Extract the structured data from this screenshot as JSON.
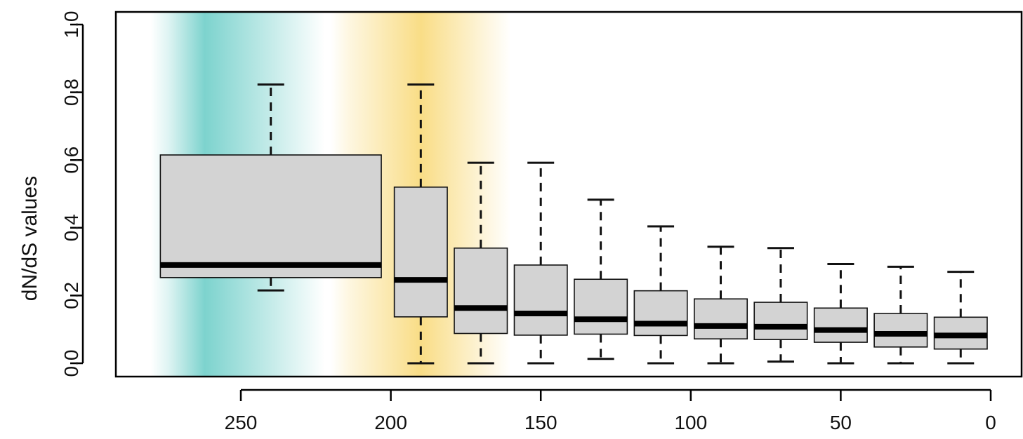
{
  "chart_data": {
    "type": "box",
    "title": "",
    "xlabel": "",
    "ylabel": "dN/dS values",
    "xlim": [
      290,
      -8
    ],
    "ylim": [
      0.0,
      1.0
    ],
    "x_ticks": [
      250,
      200,
      150,
      100,
      50,
      0
    ],
    "x_tick_labels": [
      "250",
      "200",
      "150",
      "100",
      "50",
      "0"
    ],
    "y_ticks": [
      0.0,
      0.2,
      0.4,
      0.6,
      0.8,
      1.0
    ],
    "y_tick_labels": [
      "0.0",
      "0.2",
      "0.4",
      "0.6",
      "0.8",
      "1.0"
    ],
    "grid": false,
    "background_bands": [
      {
        "from": 280,
        "to": 222,
        "peak": 262,
        "color": "#7dd3ce"
      },
      {
        "from": 220,
        "to": 160,
        "peak": 190,
        "color": "#f9dd86"
      }
    ],
    "box_color": "#d3d3d3",
    "boxes": [
      {
        "x_left": 278,
        "x_right": 202,
        "x_center": 240,
        "whisker_low": 0.215,
        "q1": 0.253,
        "median": 0.29,
        "q3": 0.615,
        "whisker_high": 0.823
      },
      {
        "x_left": 200,
        "x_right": 180,
        "x_center": 190,
        "whisker_low": 0.0,
        "q1": 0.137,
        "median": 0.246,
        "q3": 0.52,
        "whisker_high": 0.823
      },
      {
        "x_left": 180,
        "x_right": 160,
        "x_center": 170,
        "whisker_low": 0.0,
        "q1": 0.088,
        "median": 0.163,
        "q3": 0.34,
        "whisker_high": 0.592
      },
      {
        "x_left": 160,
        "x_right": 140,
        "x_center": 150,
        "whisker_low": 0.0,
        "q1": 0.083,
        "median": 0.147,
        "q3": 0.29,
        "whisker_high": 0.592
      },
      {
        "x_left": 140,
        "x_right": 120,
        "x_center": 130,
        "whisker_low": 0.013,
        "q1": 0.086,
        "median": 0.13,
        "q3": 0.248,
        "whisker_high": 0.483
      },
      {
        "x_left": 120,
        "x_right": 100,
        "x_center": 110,
        "whisker_low": 0.0,
        "q1": 0.082,
        "median": 0.117,
        "q3": 0.214,
        "whisker_high": 0.404
      },
      {
        "x_left": 100,
        "x_right": 80,
        "x_center": 90,
        "whisker_low": 0.0,
        "q1": 0.072,
        "median": 0.11,
        "q3": 0.19,
        "whisker_high": 0.344
      },
      {
        "x_left": 80,
        "x_right": 60,
        "x_center": 70,
        "whisker_low": 0.005,
        "q1": 0.07,
        "median": 0.108,
        "q3": 0.18,
        "whisker_high": 0.34
      },
      {
        "x_left": 60,
        "x_right": 40,
        "x_center": 50,
        "whisker_low": 0.0,
        "q1": 0.062,
        "median": 0.098,
        "q3": 0.163,
        "whisker_high": 0.293
      },
      {
        "x_left": 40,
        "x_right": 20,
        "x_center": 30,
        "whisker_low": 0.0,
        "q1": 0.048,
        "median": 0.087,
        "q3": 0.147,
        "whisker_high": 0.285
      },
      {
        "x_left": 20,
        "x_right": 0,
        "x_center": 10,
        "whisker_low": 0.0,
        "q1": 0.042,
        "median": 0.082,
        "q3": 0.136,
        "whisker_high": 0.27
      }
    ]
  }
}
